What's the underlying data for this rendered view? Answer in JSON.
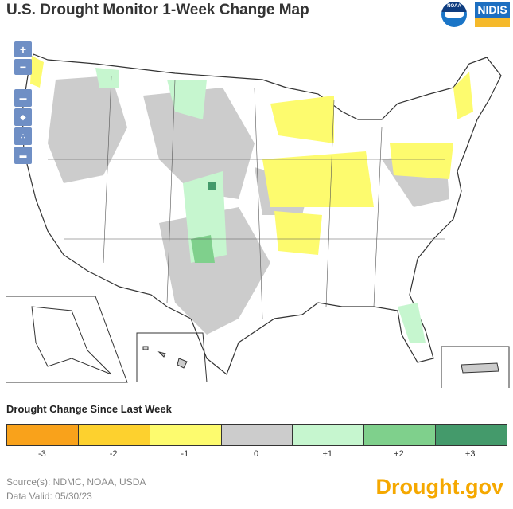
{
  "title": "U.S. Drought Monitor 1-Week Change Map",
  "logos": {
    "noaa": "NOAA",
    "nidis": "NIDIS"
  },
  "controls": {
    "zoom_in": "+",
    "zoom_out": "−",
    "regions": [
      "conus-icon",
      "alaska-icon",
      "hawaii-icon",
      "puerto-rico-icon"
    ]
  },
  "legend": {
    "title": "Drought Change Since Last Week",
    "items": [
      {
        "label": "-3",
        "color": "#f9a21b"
      },
      {
        "label": "-2",
        "color": "#fdd12e"
      },
      {
        "label": "-1",
        "color": "#fdfb6e"
      },
      {
        "label": "0",
        "color": "#cccccc"
      },
      {
        "label": "+1",
        "color": "#c6f6cf"
      },
      {
        "label": "+2",
        "color": "#7fd08c"
      },
      {
        "label": "+3",
        "color": "#449a6b"
      }
    ]
  },
  "source": "Source(s): NDMC, NOAA, USDA",
  "valid": "Data Valid: 05/30/23",
  "brand": "Drought.gov"
}
